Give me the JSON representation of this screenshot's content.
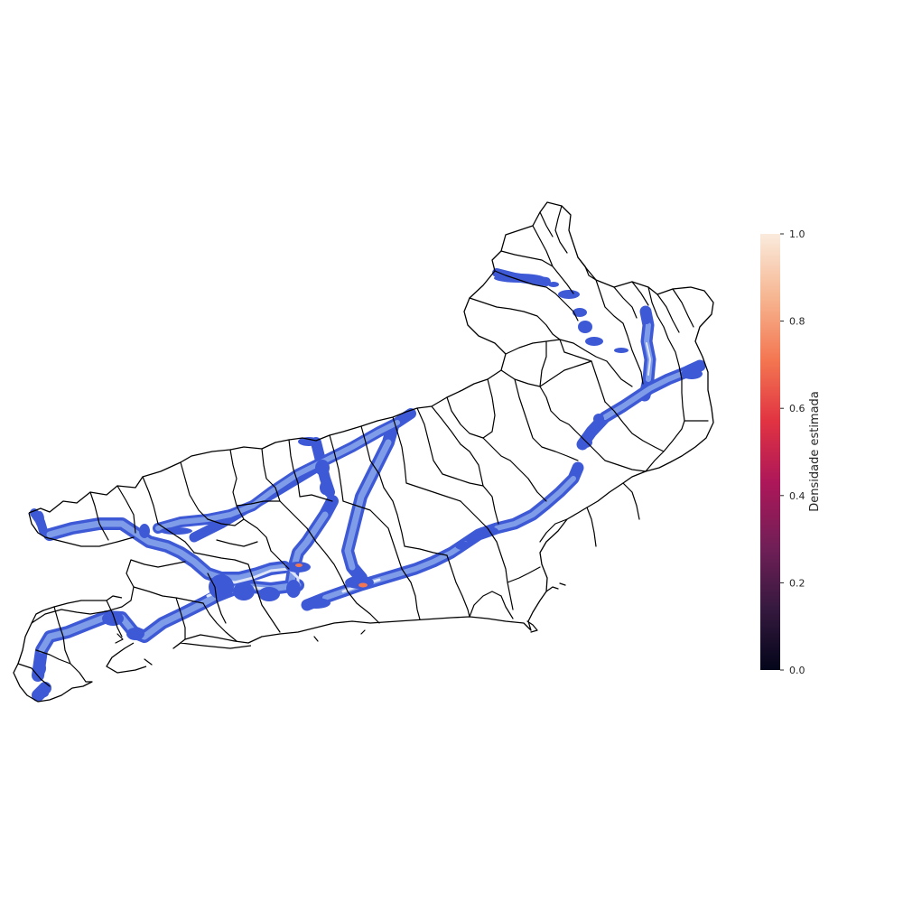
{
  "colorbar": {
    "label": "Densidade estimada",
    "ticks": [
      "0.0",
      "0.2",
      "0.4",
      "0.6",
      "0.8",
      "1.0"
    ],
    "tick_values": [
      0.0,
      0.2,
      0.4,
      0.6,
      0.8,
      1.0
    ],
    "range": [
      0.0,
      1.0
    ],
    "colormap": "rocket",
    "colors": [
      "#03051a",
      "#35193e",
      "#701f57",
      "#ad1759",
      "#e13342",
      "#f37651",
      "#f6b48f",
      "#faebdd"
    ]
  },
  "map": {
    "density_colors": {
      "low": "#3e59d6",
      "mid": "#7f9ce8",
      "high_fill": "#dfe6f7",
      "peak": "#f37651"
    },
    "border_color": "#000000"
  }
}
